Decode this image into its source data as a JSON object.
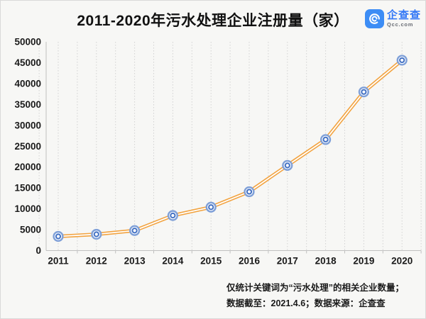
{
  "header": {
    "title": "2011-2020年污水处理企业注册量（家）",
    "logo": {
      "brand_name": "企查查",
      "brand_domain": "Qcc.com",
      "icon": "qcc-spiral-icon",
      "icon_bg_color": "#3d8df5",
      "brand_color": "#3478f6"
    }
  },
  "chart_data": {
    "type": "line",
    "title": "2011-2020年污水处理企业注册量（家）",
    "categories": [
      "2011",
      "2012",
      "2013",
      "2014",
      "2015",
      "2016",
      "2017",
      "2018",
      "2019",
      "2020"
    ],
    "series": [
      {
        "name": "污水处理企业注册量(家)",
        "values": [
          3400,
          3900,
          4800,
          8400,
          10400,
          14100,
          20400,
          26600,
          38000,
          45600
        ]
      }
    ],
    "ylim": [
      0,
      50000
    ],
    "y_tick_step": 5000,
    "y_ticks": [
      0,
      5000,
      10000,
      15000,
      20000,
      25000,
      30000,
      35000,
      40000,
      45000,
      50000
    ],
    "xlabel": "",
    "ylabel": "",
    "legend": "none",
    "grid": "vertical-dotted",
    "line_color": "#f2a340",
    "line_core_color": "#ffffff",
    "marker_outer_color": "#7fa0d8",
    "marker_inner_color": "#4472c4",
    "axis_color": "#c0c0c0",
    "grid_color": "#d2d2d2",
    "tick_label_color": "#1a1a1a"
  },
  "footer": {
    "note_line1": "仅统计关键词为“污水处理”的相关企业数量；",
    "note_line2": "数据截至：2021.4.6；数据来源：企查查"
  }
}
